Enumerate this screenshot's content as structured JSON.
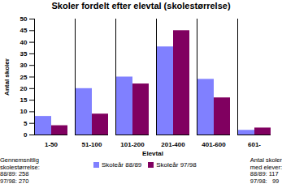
{
  "chart_data": {
    "type": "bar",
    "title": "Skoler fordelt efter elevtal (skolestørrelse)",
    "x_label": "Elevtal",
    "y_label": "Antal skoler",
    "categories": [
      "1-50",
      "51-100",
      "101-200",
      "201-400",
      "401-600",
      "601-"
    ],
    "series": [
      {
        "name": "Skoleår 88/89",
        "color": "#8080ff",
        "values": [
          8,
          20,
          25,
          38,
          24,
          2
        ]
      },
      {
        "name": "Skoleår 97/98",
        "color": "#800060",
        "values": [
          4,
          9,
          22,
          45,
          16,
          3
        ]
      }
    ],
    "ylim": [
      0,
      50
    ],
    "yticks": [
      0,
      5,
      10,
      15,
      20,
      25,
      30,
      35,
      40,
      45,
      50
    ],
    "legend": "bottom",
    "annotations": [
      [
        "Gennemsnitlig",
        "skolestørrelse:",
        "88/89: 258",
        "97/98: 270"
      ],
      [
        "Antal skoler",
        "med elever:",
        "88/89: 117",
        "97/98:   99"
      ]
    ]
  }
}
